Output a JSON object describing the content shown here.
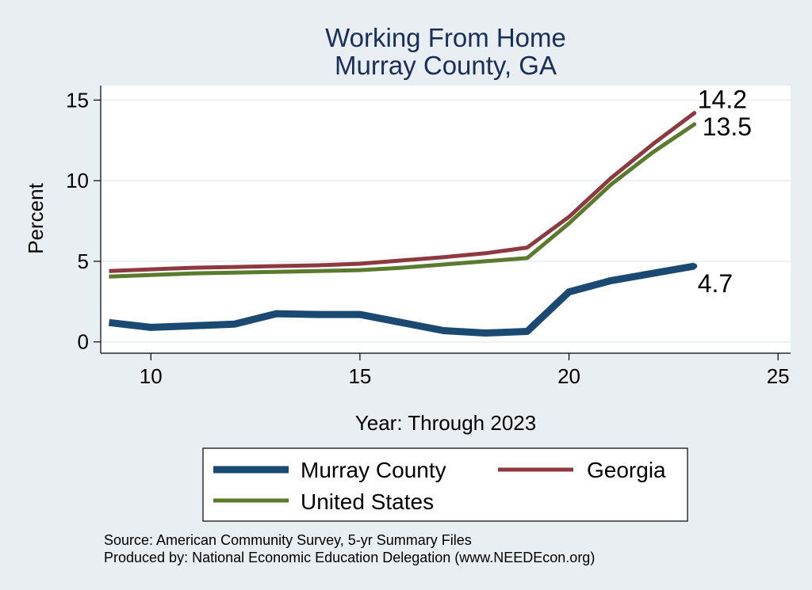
{
  "chart_data": {
    "type": "line",
    "title": [
      "Working From Home",
      "Murray County, GA"
    ],
    "xlabel": "Year: Through 2023",
    "ylabel": "Percent",
    "xlim": [
      8.8,
      25.3
    ],
    "ylim": [
      -0.7,
      15.9
    ],
    "xticks": [
      10,
      15,
      20,
      25
    ],
    "yticks": [
      0,
      5,
      10,
      15
    ],
    "grid": true,
    "legend_position": "bottom",
    "series": [
      {
        "name": "Murray County",
        "color": "#1a4a72",
        "x": [
          9,
          10,
          11,
          12,
          13,
          14,
          15,
          16,
          17,
          18,
          19,
          20,
          21,
          22,
          23
        ],
        "y": [
          1.2,
          0.9,
          1.0,
          1.1,
          1.75,
          1.7,
          1.7,
          1.2,
          0.7,
          0.55,
          0.65,
          3.1,
          3.8,
          4.25,
          4.7
        ],
        "end_label": "4.7"
      },
      {
        "name": "Georgia",
        "color": "#8c3a3f",
        "x": [
          9,
          10,
          11,
          12,
          13,
          14,
          15,
          16,
          17,
          18,
          19,
          20,
          21,
          22,
          23
        ],
        "y": [
          4.4,
          4.5,
          4.6,
          4.65,
          4.7,
          4.75,
          4.85,
          5.05,
          5.25,
          5.5,
          5.85,
          7.75,
          10.15,
          12.25,
          14.2
        ],
        "end_label": "14.2"
      },
      {
        "name": "United States",
        "color": "#5a7a2e",
        "x": [
          9,
          10,
          11,
          12,
          13,
          14,
          15,
          16,
          17,
          18,
          19,
          20,
          21,
          22,
          23
        ],
        "y": [
          4.05,
          4.15,
          4.25,
          4.3,
          4.35,
          4.4,
          4.45,
          4.6,
          4.8,
          5.0,
          5.2,
          7.35,
          9.75,
          11.75,
          13.5
        ],
        "end_label": "13.5"
      }
    ],
    "source_lines": [
      "Source: American Community Survey, 5-yr Summary Files",
      "Produced by: National Economic Education Delegation (www.NEEDEcon.org)"
    ]
  }
}
